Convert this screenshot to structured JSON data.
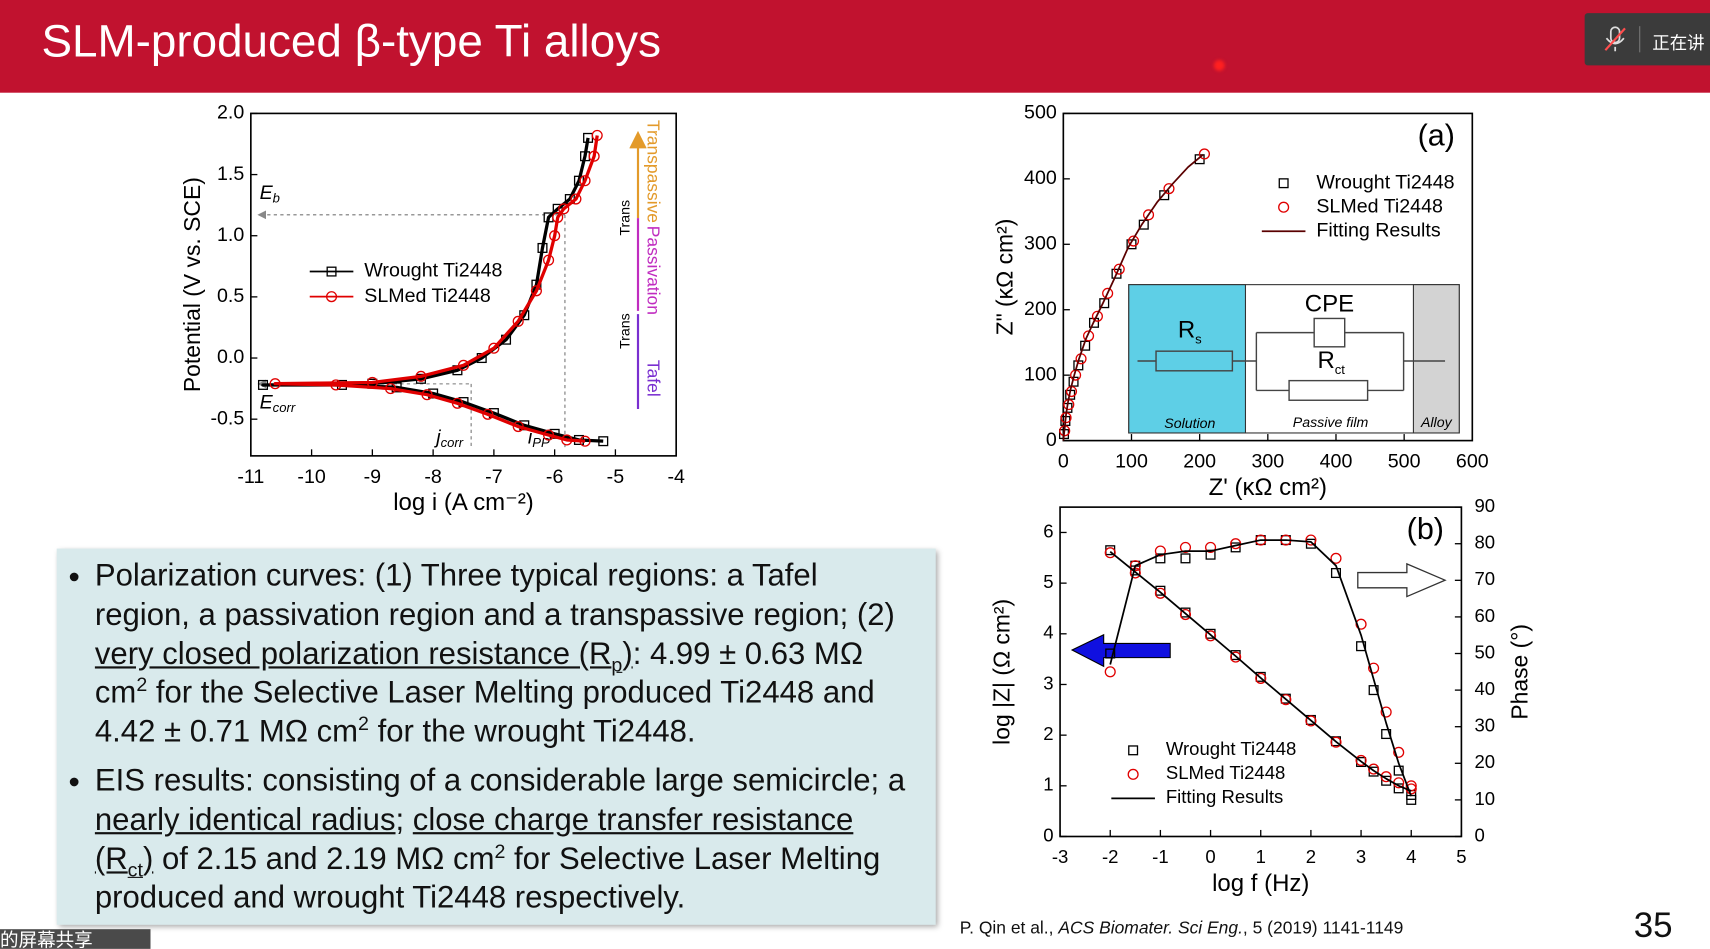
{
  "header": {
    "title": "SLM-produced β-type Ti alloys",
    "meeting_status": "正在讲"
  },
  "chart_data": [
    {
      "type": "line",
      "x_label": "log i (A cm⁻²)",
      "y_label": "Potential (V vs. SCE)",
      "xlim": [
        -11,
        -4
      ],
      "xticks": [
        -11,
        -10,
        -9,
        -8,
        -7,
        -6,
        -5,
        -4
      ],
      "ylim": [
        -0.8,
        2.0
      ],
      "yticks": [
        -0.5,
        {
          "value": 0,
          "label": "0.0"
        },
        0.5,
        {
          "value": 1,
          "label": "1.0"
        },
        1.5,
        {
          "value": 2,
          "label": "2.0"
        }
      ],
      "legend": "center-left",
      "series": [
        {
          "name": "Wrought Ti2448",
          "color": "#000000",
          "marker": "square",
          "line": true,
          "x": [
            -5.2,
            -5.6,
            -6.0,
            -6.5,
            -7.0,
            -7.5,
            -8.0,
            -8.6,
            -9.5,
            -10.8,
            -9.0,
            -8.2,
            -7.6,
            -7.2,
            -6.8,
            -6.5,
            -6.3,
            -6.2,
            -6.1,
            -5.95,
            -5.75,
            -5.6,
            -5.5,
            -5.45
          ],
          "values": [
            -0.68,
            -0.67,
            -0.62,
            -0.55,
            -0.45,
            -0.36,
            -0.29,
            -0.24,
            -0.22,
            -0.22,
            -0.21,
            -0.17,
            -0.1,
            0.0,
            0.15,
            0.35,
            0.6,
            0.9,
            1.15,
            1.22,
            1.3,
            1.45,
            1.65,
            1.8
          ]
        },
        {
          "name": "SLMed Ti2448",
          "color": "#e00000",
          "marker": "circle",
          "line": true,
          "x": [
            -5.5,
            -5.8,
            -6.1,
            -6.6,
            -7.1,
            -7.6,
            -8.1,
            -8.7,
            -9.6,
            -10.6,
            -9.0,
            -8.2,
            -7.5,
            -7.0,
            -6.6,
            -6.3,
            -6.1,
            -6.0,
            -5.95,
            -5.85,
            -5.65,
            -5.5,
            -5.35,
            -5.3
          ],
          "values": [
            -0.68,
            -0.67,
            -0.63,
            -0.56,
            -0.46,
            -0.37,
            -0.3,
            -0.25,
            -0.22,
            -0.21,
            -0.2,
            -0.15,
            -0.06,
            0.08,
            0.3,
            0.55,
            0.8,
            1.0,
            1.15,
            1.22,
            1.3,
            1.45,
            1.65,
            1.82
          ]
        }
      ],
      "annotations": [
        {
          "text": "E",
          "sub": "b"
        },
        {
          "text": "E",
          "sub": "corr"
        },
        {
          "text": "j",
          "sub": "corr"
        },
        {
          "text": "i",
          "sub": "PP"
        }
      ],
      "side_labels": [
        {
          "text": "Transpassive",
          "color": "#e39a2a"
        },
        {
          "text": "Passivation",
          "color": "#c02cc0"
        },
        {
          "text": "Tafel",
          "color": "#7a2fd0"
        },
        {
          "text": "Trans",
          "color": "#000000"
        },
        {
          "text": "Trans",
          "color": "#000000"
        }
      ]
    },
    {
      "type": "scatter",
      "panel_label": "(a)",
      "x_label": "Z' (κΩ cm²)",
      "y_label": "Z\" (κΩ cm²)",
      "xlim": [
        0,
        600
      ],
      "xticks": [
        0,
        100,
        200,
        300,
        400,
        500,
        600
      ],
      "ylim": [
        0,
        500
      ],
      "yticks": [
        0,
        100,
        200,
        300,
        400,
        500
      ],
      "legend": "upper-right",
      "series": [
        {
          "name": "Wrought Ti2448",
          "color": "#000000",
          "marker": "square",
          "line": false,
          "x": [
            1,
            3,
            6,
            10,
            15,
            22,
            32,
            45,
            60,
            78,
            100,
            118,
            148,
            200
          ],
          "values": [
            10,
            30,
            50,
            70,
            90,
            115,
            145,
            180,
            210,
            255,
            300,
            330,
            375,
            430
          ]
        },
        {
          "name": "SLMed Ti2448",
          "color": "#e00000",
          "marker": "circle",
          "line": false,
          "x": [
            2,
            4,
            8,
            12,
            18,
            26,
            37,
            50,
            65,
            82,
            103,
            125,
            155,
            207
          ],
          "values": [
            15,
            35,
            55,
            75,
            100,
            125,
            160,
            190,
            225,
            262,
            305,
            345,
            385,
            438
          ]
        },
        {
          "name": "Fitting Results",
          "color": "#5a0000",
          "marker": null,
          "line": true,
          "x": [
            0,
            2,
            4,
            7,
            11,
            16,
            23,
            33,
            44,
            58,
            75,
            95,
            115,
            138,
            160,
            183,
            205
          ],
          "values": [
            0,
            20,
            40,
            60,
            80,
            100,
            125,
            155,
            180,
            210,
            248,
            295,
            330,
            365,
            392,
            418,
            437
          ]
        }
      ],
      "inset": {
        "elements": [
          {
            "text": "R",
            "sub": "s"
          },
          {
            "text": "CPE"
          },
          {
            "text": "R",
            "sub": "ct"
          }
        ],
        "regions": [
          "Solution",
          "Passive film",
          "Alloy"
        ]
      }
    },
    {
      "type": "scatter",
      "panel_label": "(b)",
      "x_label": "log f (Hz)",
      "y_label": "log |Z| (Ω cm²)",
      "y2_label": "Phase (°)",
      "xlim": [
        -3,
        5
      ],
      "xticks": [
        -3,
        -2,
        -1,
        0,
        1,
        2,
        3,
        4,
        5
      ],
      "ylim": [
        0,
        6.5
      ],
      "yticks": [
        0,
        1,
        2,
        3,
        4,
        5,
        6
      ],
      "y2lim": [
        0,
        90
      ],
      "y2ticks": [
        0,
        10,
        20,
        30,
        40,
        50,
        60,
        70,
        80,
        90
      ],
      "legend": "lower-left",
      "series": [
        {
          "name": "Wrought Ti2448",
          "color": "#000000",
          "marker": "square",
          "line": false,
          "x": [
            -2,
            -1.5,
            -1,
            -0.5,
            0,
            0.5,
            1,
            1.5,
            2,
            2.5,
            3,
            3.25,
            3.5,
            3.75,
            4
          ],
          "values": [
            5.65,
            5.25,
            4.85,
            4.42,
            4.0,
            3.58,
            3.15,
            2.72,
            2.3,
            1.88,
            1.47,
            1.28,
            1.1,
            0.95,
            0.82
          ],
          "y2_values": [
            50,
            74,
            76,
            76,
            77,
            79,
            81,
            81,
            80,
            72,
            52,
            40,
            28,
            18,
            10
          ]
        },
        {
          "name": "SLMed Ti2448",
          "color": "#e00000",
          "marker": "circle",
          "line": false,
          "x": [
            -2,
            -1.5,
            -1,
            -0.5,
            0,
            0.5,
            1,
            1.5,
            2,
            2.5,
            3,
            3.25,
            3.5,
            3.75,
            4
          ],
          "values": [
            5.6,
            5.2,
            4.8,
            4.38,
            3.96,
            3.54,
            3.12,
            2.7,
            2.28,
            1.86,
            1.5,
            1.33,
            1.18,
            1.06,
            1.0
          ],
          "y2_values": [
            45,
            74,
            78,
            79,
            79,
            80,
            81,
            81,
            81,
            76,
            58,
            46,
            34,
            23,
            13
          ]
        },
        {
          "name": "Fitting Results",
          "color": "#000000",
          "marker": null,
          "line": true,
          "x": [
            -2,
            -1.5,
            -1,
            -0.5,
            0,
            0.5,
            1,
            1.5,
            2,
            2.5,
            3,
            3.25,
            3.5,
            3.75,
            4
          ],
          "values": [
            5.62,
            5.22,
            4.82,
            4.4,
            3.98,
            3.56,
            3.13,
            2.71,
            2.29,
            1.87,
            1.48,
            1.3,
            1.14,
            1.0,
            0.9
          ],
          "y2_values": [
            47,
            74,
            77,
            78,
            78,
            79.5,
            81,
            81,
            80.5,
            74,
            55,
            43,
            31,
            20,
            11
          ]
        }
      ]
    }
  ],
  "bullets": [
    {
      "runs": [
        {
          "text": "Polarization curves: (1) Three typical regions: a Tafel region, a passivation region and a transpassive region; (2) "
        },
        {
          "text": "very closed polarization resistance (R",
          "style": "u"
        },
        {
          "text": "p",
          "style": "u-sub"
        },
        {
          "text": ")",
          "style": "u"
        },
        {
          "text": ": 4.99 ± 0.63 MΩ cm"
        },
        {
          "text": "2",
          "style": "sup"
        },
        {
          "text": " for the Selective Laser Melting produced Ti2448 and 4.42 ± 0.71 MΩ cm"
        },
        {
          "text": "2",
          "style": "sup"
        },
        {
          "text": " for the wrought Ti2448."
        }
      ]
    },
    {
      "runs": [
        {
          "text": "EIS results: consisting of a considerable large semicircle; a "
        },
        {
          "text": "nearly identical radius",
          "style": "u"
        },
        {
          "text": "; "
        },
        {
          "text": "close charge transfer resistance (R",
          "style": "u"
        },
        {
          "text": "ct",
          "style": "u-sub"
        },
        {
          "text": ")",
          "style": "u"
        },
        {
          "text": " of 2.15 and 2.19 MΩ cm"
        },
        {
          "text": "2",
          "style": "sup"
        },
        {
          "text": " for Selective Laser Melting produced and wrought Ti2448 respectively."
        }
      ]
    }
  ],
  "citation": {
    "runs": [
      {
        "text": "P. Qin et al., "
      },
      {
        "text": "ACS Biomater. Sci Eng.",
        "style": "i"
      },
      {
        "text": ", 5 (2019) 1141-1149"
      }
    ]
  },
  "slide_number": 35,
  "share_banner": "的屏幕共享"
}
